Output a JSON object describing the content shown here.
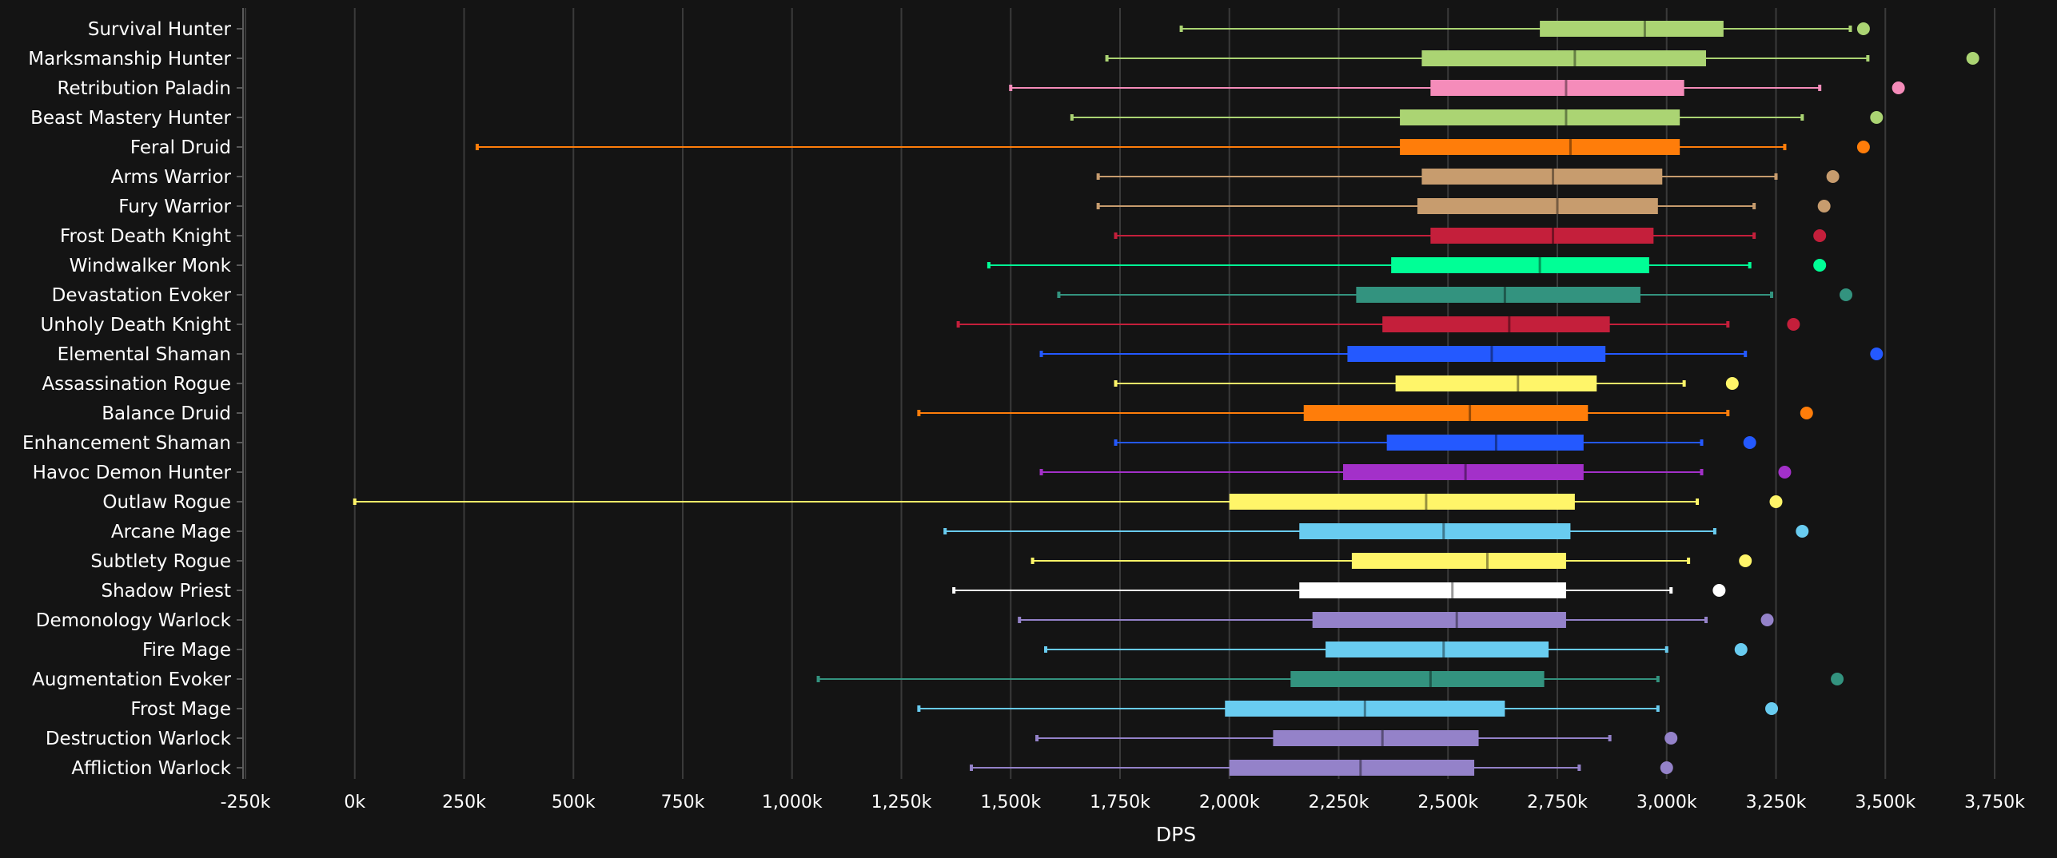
{
  "chart_data": {
    "type": "boxplot",
    "title": "",
    "xlabel": "DPS",
    "ylabel": "",
    "xlim": [
      -250000,
      3750000
    ],
    "x_ticks": [
      -250000,
      0,
      250000,
      500000,
      750000,
      1000000,
      1250000,
      1500000,
      1750000,
      2000000,
      2250000,
      2500000,
      2750000,
      3000000,
      3250000,
      3500000,
      3750000
    ],
    "x_tick_labels": [
      "-250k",
      "0k",
      "250k",
      "500k",
      "750k",
      "1,000k",
      "1,250k",
      "1,500k",
      "1,750k",
      "2,000k",
      "2,250k",
      "2,500k",
      "2,750k",
      "3,000k",
      "3,250k",
      "3,500k",
      "3,750k"
    ],
    "grid": true,
    "legend": "none",
    "series": [
      {
        "category": "Survival Hunter",
        "color": "#abd473",
        "min": 1890000,
        "q1": 2710000,
        "median": 2950000,
        "q3": 3130000,
        "max": 3420000,
        "outlier": 3450000
      },
      {
        "category": "Marksmanship Hunter",
        "color": "#abd473",
        "min": 1720000,
        "q1": 2440000,
        "median": 2790000,
        "q3": 3090000,
        "max": 3460000,
        "outlier": 3700000
      },
      {
        "category": "Retribution Paladin",
        "color": "#f58cba",
        "min": 1500000,
        "q1": 2460000,
        "median": 2770000,
        "q3": 3040000,
        "max": 3350000,
        "outlier": 3530000
      },
      {
        "category": "Beast Mastery Hunter",
        "color": "#abd473",
        "min": 1640000,
        "q1": 2390000,
        "median": 2770000,
        "q3": 3030000,
        "max": 3310000,
        "outlier": 3480000
      },
      {
        "category": "Feral Druid",
        "color": "#ff7d0a",
        "min": 280000,
        "q1": 2390000,
        "median": 2780000,
        "q3": 3030000,
        "max": 3270000,
        "outlier": 3450000
      },
      {
        "category": "Arms Warrior",
        "color": "#c79c6e",
        "min": 1700000,
        "q1": 2440000,
        "median": 2740000,
        "q3": 2990000,
        "max": 3250000,
        "outlier": 3380000
      },
      {
        "category": "Fury Warrior",
        "color": "#c79c6e",
        "min": 1700000,
        "q1": 2430000,
        "median": 2750000,
        "q3": 2980000,
        "max": 3200000,
        "outlier": 3360000
      },
      {
        "category": "Frost Death Knight",
        "color": "#c41f3b",
        "min": 1740000,
        "q1": 2460000,
        "median": 2740000,
        "q3": 2970000,
        "max": 3200000,
        "outlier": 3350000
      },
      {
        "category": "Windwalker Monk",
        "color": "#00ff96",
        "min": 1450000,
        "q1": 2370000,
        "median": 2710000,
        "q3": 2960000,
        "max": 3190000,
        "outlier": 3350000
      },
      {
        "category": "Devastation Evoker",
        "color": "#33937f",
        "min": 1610000,
        "q1": 2290000,
        "median": 2630000,
        "q3": 2940000,
        "max": 3240000,
        "outlier": 3410000
      },
      {
        "category": "Unholy Death Knight",
        "color": "#c41f3b",
        "min": 1380000,
        "q1": 2350000,
        "median": 2640000,
        "q3": 2870000,
        "max": 3140000,
        "outlier": 3290000
      },
      {
        "category": "Elemental Shaman",
        "color": "#2459ff",
        "min": 1570000,
        "q1": 2270000,
        "median": 2600000,
        "q3": 2860000,
        "max": 3180000,
        "outlier": 3480000
      },
      {
        "category": "Assassination Rogue",
        "color": "#fff569",
        "min": 1740000,
        "q1": 2380000,
        "median": 2660000,
        "q3": 2840000,
        "max": 3040000,
        "outlier": 3150000
      },
      {
        "category": "Balance Druid",
        "color": "#ff7d0a",
        "min": 1290000,
        "q1": 2170000,
        "median": 2550000,
        "q3": 2820000,
        "max": 3140000,
        "outlier": 3320000
      },
      {
        "category": "Enhancement Shaman",
        "color": "#2459ff",
        "min": 1740000,
        "q1": 2360000,
        "median": 2610000,
        "q3": 2810000,
        "max": 3080000,
        "outlier": 3190000
      },
      {
        "category": "Havoc Demon Hunter",
        "color": "#a330c9",
        "min": 1570000,
        "q1": 2260000,
        "median": 2540000,
        "q3": 2810000,
        "max": 3080000,
        "outlier": 3270000
      },
      {
        "category": "Outlaw Rogue",
        "color": "#fff569",
        "min": 0,
        "q1": 2000000,
        "median": 2450000,
        "q3": 2790000,
        "max": 3070000,
        "outlier": 3250000
      },
      {
        "category": "Arcane Mage",
        "color": "#69ccf0",
        "min": 1350000,
        "q1": 2160000,
        "median": 2490000,
        "q3": 2780000,
        "max": 3110000,
        "outlier": 3310000
      },
      {
        "category": "Subtlety Rogue",
        "color": "#fff569",
        "min": 1550000,
        "q1": 2280000,
        "median": 2590000,
        "q3": 2770000,
        "max": 3050000,
        "outlier": 3180000
      },
      {
        "category": "Shadow Priest",
        "color": "#ffffff",
        "min": 1370000,
        "q1": 2160000,
        "median": 2510000,
        "q3": 2770000,
        "max": 3010000,
        "outlier": 3120000
      },
      {
        "category": "Demonology Warlock",
        "color": "#9482c9",
        "min": 1520000,
        "q1": 2190000,
        "median": 2520000,
        "q3": 2770000,
        "max": 3090000,
        "outlier": 3230000
      },
      {
        "category": "Fire Mage",
        "color": "#69ccf0",
        "min": 1580000,
        "q1": 2220000,
        "median": 2490000,
        "q3": 2730000,
        "max": 3000000,
        "outlier": 3170000
      },
      {
        "category": "Augmentation Evoker",
        "color": "#33937f",
        "min": 1060000,
        "q1": 2140000,
        "median": 2460000,
        "q3": 2720000,
        "max": 2980000,
        "outlier": 3390000
      },
      {
        "category": "Frost Mage",
        "color": "#69ccf0",
        "min": 1290000,
        "q1": 1990000,
        "median": 2310000,
        "q3": 2630000,
        "max": 2980000,
        "outlier": 3240000
      },
      {
        "category": "Destruction Warlock",
        "color": "#9482c9",
        "min": 1560000,
        "q1": 2100000,
        "median": 2350000,
        "q3": 2570000,
        "max": 2870000,
        "outlier": 3010000
      },
      {
        "category": "Affliction Warlock",
        "color": "#9482c9",
        "min": 1410000,
        "q1": 2000000,
        "median": 2300000,
        "q3": 2560000,
        "max": 2800000,
        "outlier": 3000000
      }
    ]
  }
}
